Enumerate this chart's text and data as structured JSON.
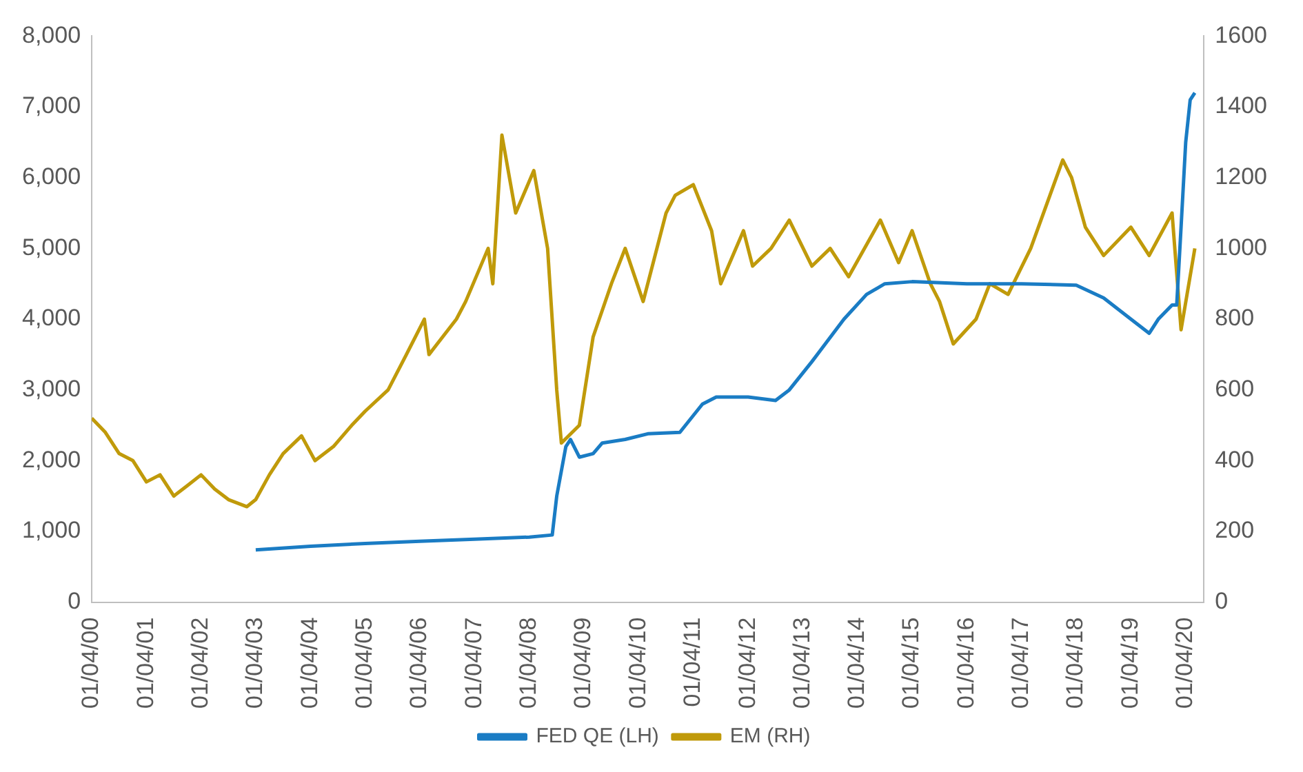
{
  "chart_data": {
    "type": "line",
    "legend": "bottom",
    "grid": false,
    "marker": "none",
    "line_style": "solid",
    "xlim": [
      "2000-04-01",
      "2020-08-01"
    ],
    "xticks": [
      {
        "value": "2000-04-01",
        "label": "01/04/00"
      },
      {
        "value": "2001-04-01",
        "label": "01/04/01"
      },
      {
        "value": "2002-04-01",
        "label": "01/04/02"
      },
      {
        "value": "2003-04-01",
        "label": "01/04/03"
      },
      {
        "value": "2004-04-01",
        "label": "01/04/04"
      },
      {
        "value": "2005-04-01",
        "label": "01/04/05"
      },
      {
        "value": "2006-04-01",
        "label": "01/04/06"
      },
      {
        "value": "2007-04-01",
        "label": "01/04/07"
      },
      {
        "value": "2008-04-01",
        "label": "01/04/08"
      },
      {
        "value": "2009-04-01",
        "label": "01/04/09"
      },
      {
        "value": "2010-04-01",
        "label": "01/04/10"
      },
      {
        "value": "2011-04-01",
        "label": "01/04/11"
      },
      {
        "value": "2012-04-01",
        "label": "01/04/12"
      },
      {
        "value": "2013-04-01",
        "label": "01/04/13"
      },
      {
        "value": "2014-04-01",
        "label": "01/04/14"
      },
      {
        "value": "2015-04-01",
        "label": "01/04/15"
      },
      {
        "value": "2016-04-01",
        "label": "01/04/16"
      },
      {
        "value": "2017-04-01",
        "label": "01/04/17"
      },
      {
        "value": "2018-04-01",
        "label": "01/04/18"
      },
      {
        "value": "2019-04-01",
        "label": "01/04/19"
      },
      {
        "value": "2020-04-01",
        "label": "01/04/20"
      }
    ],
    "ylim": [
      0,
      8000
    ],
    "yticks": [
      0,
      {
        "value": 1000,
        "label": "1,000"
      },
      {
        "value": 2000,
        "label": "2,000"
      },
      {
        "value": 3000,
        "label": "3,000"
      },
      {
        "value": 4000,
        "label": "4,000"
      },
      {
        "value": 5000,
        "label": "5,000"
      },
      {
        "value": 6000,
        "label": "6,000"
      },
      {
        "value": 7000,
        "label": "7,000"
      },
      {
        "value": 8000,
        "label": "8,000"
      }
    ],
    "y2lim": [
      0,
      1600
    ],
    "y2ticks": [
      0,
      200,
      400,
      600,
      800,
      1000,
      1200,
      1400,
      1600
    ],
    "series": [
      {
        "name": "FED QE (LH)",
        "color": "#1a7cc4",
        "axis": "y",
        "x": [
          "2003-04",
          "2004-04",
          "2005-04",
          "2006-04",
          "2007-04",
          "2008-04",
          "2008-09",
          "2008-10",
          "2008-12",
          "2009-01",
          "2009-03",
          "2009-06",
          "2009-08",
          "2010-01",
          "2010-06",
          "2011-01",
          "2011-06",
          "2011-09",
          "2012-04",
          "2012-10",
          "2013-01",
          "2013-06",
          "2014-01",
          "2014-06",
          "2014-10",
          "2015-04",
          "2016-04",
          "2017-04",
          "2018-04",
          "2018-10",
          "2019-04",
          "2019-08",
          "2019-10",
          "2020-01",
          "2020-02",
          "2020-03",
          "2020-04",
          "2020-05",
          "2020-06"
        ],
        "values": [
          740,
          790,
          830,
          860,
          890,
          920,
          950,
          1500,
          2200,
          2300,
          2050,
          2100,
          2250,
          2300,
          2380,
          2400,
          2800,
          2900,
          2900,
          2850,
          3000,
          3400,
          4000,
          4350,
          4500,
          4530,
          4500,
          4500,
          4480,
          4300,
          4000,
          3800,
          4000,
          4200,
          4200,
          5300,
          6500,
          7100,
          7200
        ]
      },
      {
        "name": "EM (RH)",
        "color": "#c09a0a",
        "axis": "y2",
        "x": [
          "2000-04",
          "2000-07",
          "2000-10",
          "2001-01",
          "2001-04",
          "2001-07",
          "2001-10",
          "2002-01",
          "2002-04",
          "2002-07",
          "2002-10",
          "2003-02",
          "2003-04",
          "2003-07",
          "2003-10",
          "2004-02",
          "2004-05",
          "2004-09",
          "2005-01",
          "2005-04",
          "2005-09",
          "2006-01",
          "2006-05",
          "2006-06",
          "2006-12",
          "2007-02",
          "2007-07",
          "2007-08",
          "2007-10",
          "2008-01",
          "2008-05",
          "2008-08",
          "2008-10",
          "2008-11",
          "2009-03",
          "2009-06",
          "2009-10",
          "2010-01",
          "2010-05",
          "2010-10",
          "2010-12",
          "2011-04",
          "2011-08",
          "2011-10",
          "2012-03",
          "2012-05",
          "2012-09",
          "2013-01",
          "2013-06",
          "2013-10",
          "2014-02",
          "2014-09",
          "2015-01",
          "2015-04",
          "2015-08",
          "2015-10",
          "2016-01",
          "2016-06",
          "2016-09",
          "2017-01",
          "2017-06",
          "2018-01",
          "2018-03",
          "2018-06",
          "2018-10",
          "2019-04",
          "2019-08",
          "2020-01",
          "2020-03",
          "2020-06"
        ],
        "values": [
          520,
          480,
          420,
          400,
          340,
          360,
          300,
          330,
          360,
          320,
          290,
          270,
          290,
          360,
          420,
          470,
          400,
          440,
          500,
          540,
          600,
          700,
          800,
          700,
          800,
          850,
          1000,
          900,
          1320,
          1100,
          1220,
          1000,
          600,
          450,
          500,
          750,
          900,
          1000,
          850,
          1100,
          1150,
          1180,
          1050,
          900,
          1050,
          950,
          1000,
          1080,
          950,
          1000,
          920,
          1080,
          960,
          1050,
          900,
          850,
          730,
          800,
          900,
          870,
          1000,
          1250,
          1200,
          1060,
          980,
          1060,
          980,
          1100,
          770,
          1000
        ]
      }
    ]
  }
}
